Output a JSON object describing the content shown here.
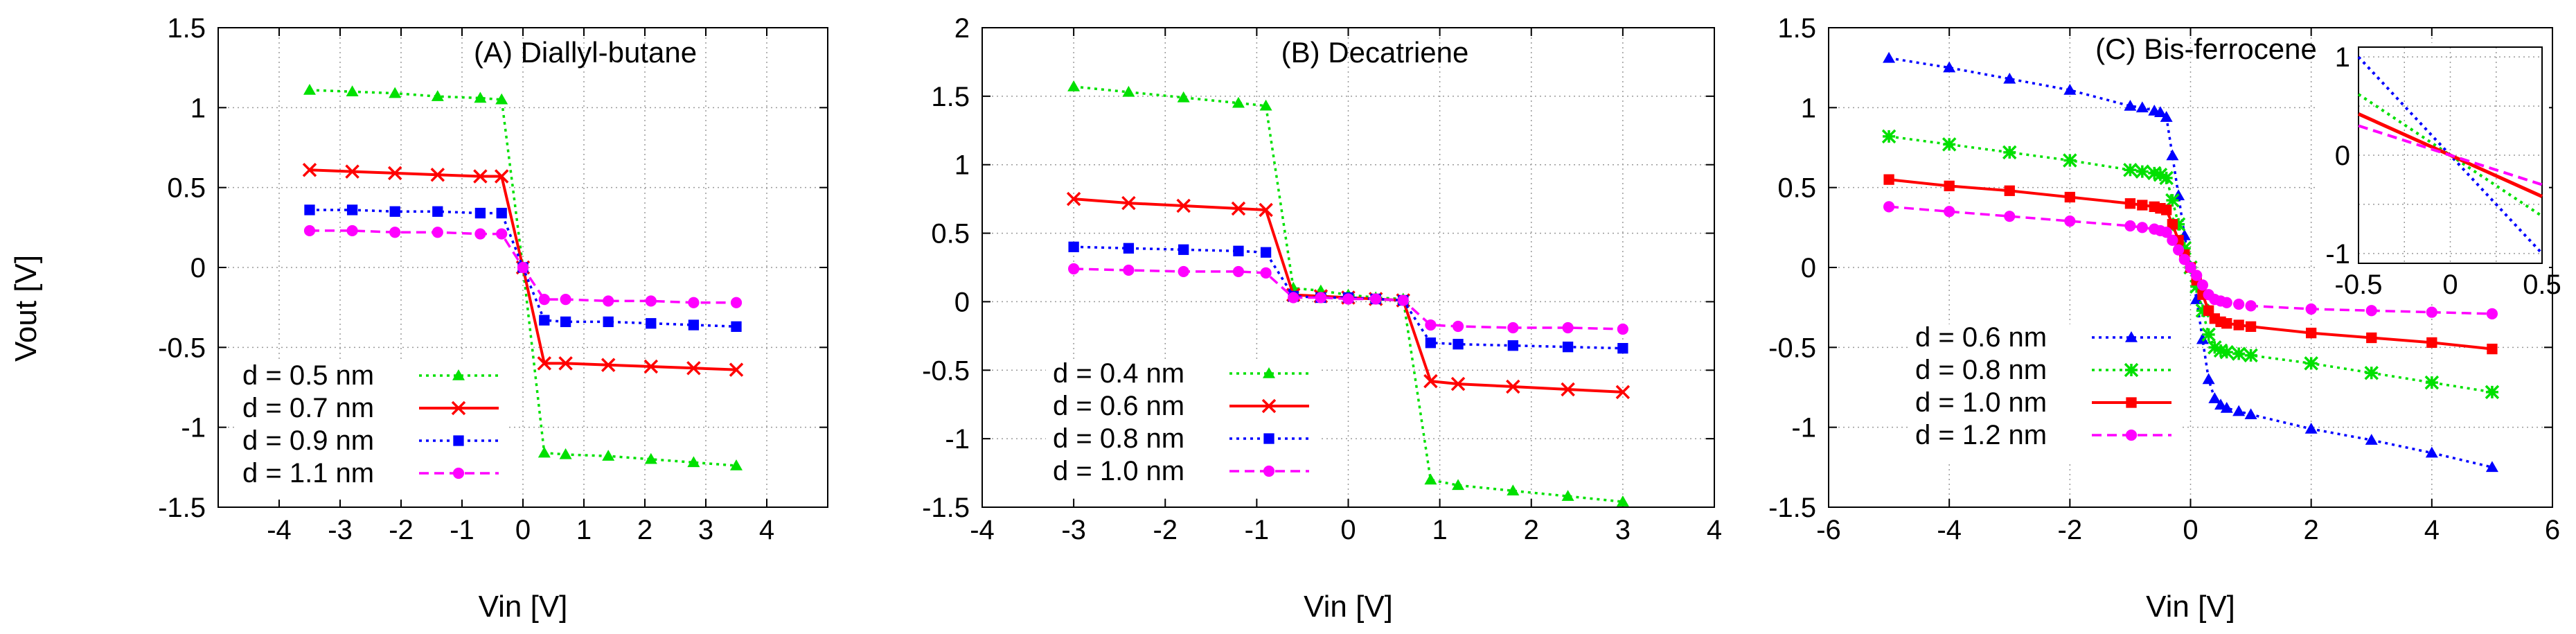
{
  "figure": {
    "ylabel": "Vout [V]"
  },
  "chart_data": [
    {
      "type": "line",
      "title": "(A) Diallyl-butane",
      "xlabel": "Vin [V]",
      "ylabel": "Vout [V]",
      "xlim": [
        -5,
        5
      ],
      "ylim": [
        -1.5,
        1.5
      ],
      "xticks": [
        -4,
        -3,
        -2,
        -1,
        0,
        1,
        2,
        3,
        4
      ],
      "yticks": [
        -1.5,
        -1,
        -0.5,
        0,
        0.5,
        1,
        1.5
      ],
      "xtick_labels": [
        "-4",
        "-3",
        "-2",
        "-1",
        "0",
        "1",
        "2",
        "3",
        "4"
      ],
      "ytick_labels": [
        "-1.5",
        "-1",
        "-0.5",
        "0",
        "0.5",
        "1",
        "1.5"
      ],
      "grid": true,
      "legend_position": "bottom-left",
      "series": [
        {
          "name": "d = 0.5 nm",
          "color": "#00e000",
          "marker": "triangle",
          "dash": "dotted",
          "x": [
            -3.5,
            -2.8,
            -2.1,
            -1.4,
            -0.7,
            -0.35,
            0,
            0.35,
            0.7,
            1.4,
            2.1,
            2.8,
            3.5
          ],
          "y": [
            1.11,
            1.1,
            1.09,
            1.07,
            1.06,
            1.05,
            0,
            -1.16,
            -1.17,
            -1.18,
            -1.2,
            -1.22,
            -1.24
          ]
        },
        {
          "name": "d = 0.7 nm",
          "color": "#ff0000",
          "marker": "x",
          "dash": "solid",
          "x": [
            -3.5,
            -2.8,
            -2.1,
            -1.4,
            -0.7,
            -0.35,
            0,
            0.35,
            0.7,
            1.4,
            2.1,
            2.8,
            3.5
          ],
          "y": [
            0.61,
            0.6,
            0.59,
            0.58,
            0.57,
            0.57,
            0,
            -0.6,
            -0.6,
            -0.61,
            -0.62,
            -0.63,
            -0.64
          ]
        },
        {
          "name": "d = 0.9 nm",
          "color": "#0000ff",
          "marker": "square",
          "dash": "dotted",
          "x": [
            -3.5,
            -2.8,
            -2.1,
            -1.4,
            -0.7,
            -0.35,
            0,
            0.35,
            0.7,
            1.4,
            2.1,
            2.8,
            3.5
          ],
          "y": [
            0.36,
            0.36,
            0.35,
            0.35,
            0.34,
            0.34,
            0,
            -0.33,
            -0.34,
            -0.34,
            -0.35,
            -0.36,
            -0.37
          ]
        },
        {
          "name": "d = 1.1 nm",
          "color": "#ff00ff",
          "marker": "circle",
          "dash": "dashed",
          "x": [
            -3.5,
            -2.8,
            -2.1,
            -1.4,
            -0.7,
            -0.35,
            0,
            0.35,
            0.7,
            1.4,
            2.1,
            2.8,
            3.5
          ],
          "y": [
            0.23,
            0.23,
            0.22,
            0.22,
            0.21,
            0.21,
            0,
            -0.2,
            -0.2,
            -0.21,
            -0.21,
            -0.22,
            -0.22
          ]
        }
      ]
    },
    {
      "type": "line",
      "title": "(B) Decatriene",
      "xlabel": "Vin [V]",
      "ylabel": "Vout [V]",
      "xlim": [
        -4,
        4
      ],
      "ylim": [
        -1.5,
        2
      ],
      "xticks": [
        -4,
        -3,
        -2,
        -1,
        0,
        1,
        2,
        3,
        4
      ],
      "yticks": [
        -1.5,
        -1,
        -0.5,
        0,
        0.5,
        1,
        1.5,
        2
      ],
      "xtick_labels": [
        "-4",
        "-3",
        "-2",
        "-1",
        "0",
        "1",
        "2",
        "3",
        "4"
      ],
      "ytick_labels": [
        "-1.5",
        "-1",
        "-0.5",
        "0",
        "0.5",
        "1",
        "1.5",
        "2"
      ],
      "grid": true,
      "legend_position": "bottom-left",
      "series": [
        {
          "name": "d = 0.4 nm",
          "color": "#00e000",
          "marker": "triangle",
          "dash": "dotted",
          "x": [
            -3,
            -2.4,
            -1.8,
            -1.2,
            -0.9,
            -0.6,
            -0.3,
            0,
            0.3,
            0.6,
            0.9,
            1.2,
            1.8,
            2.4,
            3
          ],
          "y": [
            1.57,
            1.53,
            1.49,
            1.45,
            1.43,
            0.1,
            0.08,
            0.05,
            0.03,
            0.02,
            -1.3,
            -1.34,
            -1.38,
            -1.42,
            -1.46
          ]
        },
        {
          "name": "d = 0.6 nm",
          "color": "#ff0000",
          "marker": "x",
          "dash": "solid",
          "x": [
            -3,
            -2.4,
            -1.8,
            -1.2,
            -0.9,
            -0.6,
            -0.3,
            0,
            0.3,
            0.6,
            0.9,
            1.2,
            1.8,
            2.4,
            3
          ],
          "y": [
            0.75,
            0.72,
            0.7,
            0.68,
            0.67,
            0.05,
            0.04,
            0.03,
            0.02,
            0.01,
            -0.58,
            -0.6,
            -0.62,
            -0.64,
            -0.66
          ]
        },
        {
          "name": "d = 0.8 nm",
          "color": "#0000ff",
          "marker": "square",
          "dash": "dotted",
          "x": [
            -3,
            -2.4,
            -1.8,
            -1.2,
            -0.9,
            -0.6,
            -0.3,
            0,
            0.3,
            0.6,
            0.9,
            1.2,
            1.8,
            2.4,
            3
          ],
          "y": [
            0.4,
            0.39,
            0.38,
            0.37,
            0.36,
            0.04,
            0.03,
            0.03,
            0.02,
            0.01,
            -0.3,
            -0.31,
            -0.32,
            -0.33,
            -0.34
          ]
        },
        {
          "name": "d = 1.0 nm",
          "color": "#ff00ff",
          "marker": "circle",
          "dash": "dashed",
          "x": [
            -3,
            -2.4,
            -1.8,
            -1.2,
            -0.9,
            -0.6,
            -0.3,
            0,
            0.3,
            0.6,
            0.9,
            1.2,
            1.8,
            2.4,
            3
          ],
          "y": [
            0.24,
            0.23,
            0.22,
            0.22,
            0.21,
            0.03,
            0.03,
            0.02,
            0.02,
            0.01,
            -0.17,
            -0.18,
            -0.19,
            -0.19,
            -0.2
          ]
        }
      ]
    },
    {
      "type": "line",
      "title": "(C) Bis-ferrocene",
      "xlabel": "Vin [V]",
      "ylabel": "Vout [V]",
      "xlim": [
        -6,
        6
      ],
      "ylim": [
        -1.5,
        1.5
      ],
      "xticks": [
        -6,
        -4,
        -2,
        0,
        2,
        4,
        6
      ],
      "yticks": [
        -1.5,
        -1,
        -0.5,
        0,
        0.5,
        1,
        1.5
      ],
      "xtick_labels": [
        "-6",
        "-4",
        "-2",
        "0",
        "2",
        "4",
        "6"
      ],
      "ytick_labels": [
        "-1.5",
        "-1",
        "-0.5",
        "0",
        "0.5",
        "1",
        "1.5"
      ],
      "grid": true,
      "legend_position": "bottom-left",
      "series": [
        {
          "name": "d = 0.6 nm",
          "color": "#0000ff",
          "marker": "triangle",
          "dash": "dotted",
          "x": [
            -5,
            -4,
            -3,
            -2,
            -1,
            -0.8,
            -0.6,
            -0.5,
            -0.4,
            -0.3,
            -0.2,
            -0.1,
            0,
            0.1,
            0.2,
            0.3,
            0.4,
            0.5,
            0.6,
            0.8,
            1,
            2,
            3,
            4,
            5
          ],
          "y": [
            1.31,
            1.25,
            1.18,
            1.11,
            1.01,
            1.0,
            0.98,
            0.97,
            0.94,
            0.7,
            0.45,
            0.2,
            0.0,
            -0.2,
            -0.45,
            -0.7,
            -0.82,
            -0.86,
            -0.88,
            -0.9,
            -0.92,
            -1.01,
            -1.08,
            -1.16,
            -1.25
          ]
        },
        {
          "name": "d = 0.8 nm",
          "color": "#00e000",
          "marker": "star",
          "dash": "dotted",
          "x": [
            -5,
            -4,
            -3,
            -2,
            -1,
            -0.8,
            -0.6,
            -0.5,
            -0.4,
            -0.3,
            -0.2,
            -0.1,
            0,
            0.1,
            0.2,
            0.3,
            0.4,
            0.5,
            0.6,
            0.8,
            1,
            2,
            3,
            4,
            5
          ],
          "y": [
            0.82,
            0.77,
            0.72,
            0.67,
            0.61,
            0.6,
            0.59,
            0.58,
            0.56,
            0.42,
            0.27,
            0.12,
            0.0,
            -0.12,
            -0.27,
            -0.42,
            -0.5,
            -0.52,
            -0.53,
            -0.54,
            -0.55,
            -0.6,
            -0.66,
            -0.72,
            -0.78
          ]
        },
        {
          "name": "d = 1.0 nm",
          "color": "#ff0000",
          "marker": "square",
          "dash": "solid",
          "x": [
            -5,
            -4,
            -3,
            -2,
            -1,
            -0.8,
            -0.6,
            -0.5,
            -0.4,
            -0.3,
            -0.2,
            -0.1,
            0,
            0.1,
            0.2,
            0.3,
            0.4,
            0.5,
            0.6,
            0.8,
            1,
            2,
            3,
            4,
            5
          ],
          "y": [
            0.55,
            0.51,
            0.48,
            0.44,
            0.4,
            0.39,
            0.38,
            0.37,
            0.36,
            0.27,
            0.17,
            0.08,
            0.0,
            -0.08,
            -0.17,
            -0.27,
            -0.32,
            -0.34,
            -0.35,
            -0.36,
            -0.37,
            -0.41,
            -0.44,
            -0.47,
            -0.51
          ]
        },
        {
          "name": "d = 1.2 nm",
          "color": "#ff00ff",
          "marker": "circle",
          "dash": "dashed",
          "x": [
            -5,
            -4,
            -3,
            -2,
            -1,
            -0.8,
            -0.6,
            -0.5,
            -0.4,
            -0.3,
            -0.2,
            -0.1,
            0,
            0.1,
            0.2,
            0.3,
            0.4,
            0.5,
            0.6,
            0.8,
            1,
            2,
            3,
            4,
            5
          ],
          "y": [
            0.38,
            0.35,
            0.32,
            0.29,
            0.26,
            0.25,
            0.24,
            0.23,
            0.22,
            0.17,
            0.11,
            0.05,
            0.0,
            -0.05,
            -0.11,
            -0.17,
            -0.2,
            -0.21,
            -0.22,
            -0.23,
            -0.24,
            -0.26,
            -0.27,
            -0.28,
            -0.29
          ]
        }
      ],
      "inset": {
        "type": "line",
        "xlim": [
          -0.5,
          0.5
        ],
        "ylim": [
          -1.1,
          1.1
        ],
        "xticks": [
          -0.5,
          0,
          0.5
        ],
        "yticks": [
          -1,
          0,
          1
        ],
        "xtick_labels": [
          "-0.5",
          "0",
          "0.5"
        ],
        "ytick_labels": [
          "-1",
          "0",
          "1"
        ],
        "grid": true,
        "series": [
          {
            "name": "d = 0.6 nm",
            "color": "#0000ff",
            "dash": "dotted",
            "x": [
              -0.5,
              0.5
            ],
            "y": [
              1.0,
              -1.0
            ]
          },
          {
            "name": "d = 0.8 nm",
            "color": "#00e000",
            "dash": "dotted",
            "x": [
              -0.5,
              0.5
            ],
            "y": [
              0.62,
              -0.62
            ]
          },
          {
            "name": "d = 1.0 nm",
            "color": "#ff0000",
            "dash": "solid",
            "x": [
              -0.5,
              0.5
            ],
            "y": [
              0.42,
              -0.42
            ]
          },
          {
            "name": "d = 1.2 nm",
            "color": "#ff00ff",
            "dash": "dashed",
            "x": [
              -0.5,
              0.5
            ],
            "y": [
              0.3,
              -0.3
            ]
          }
        ]
      }
    }
  ]
}
